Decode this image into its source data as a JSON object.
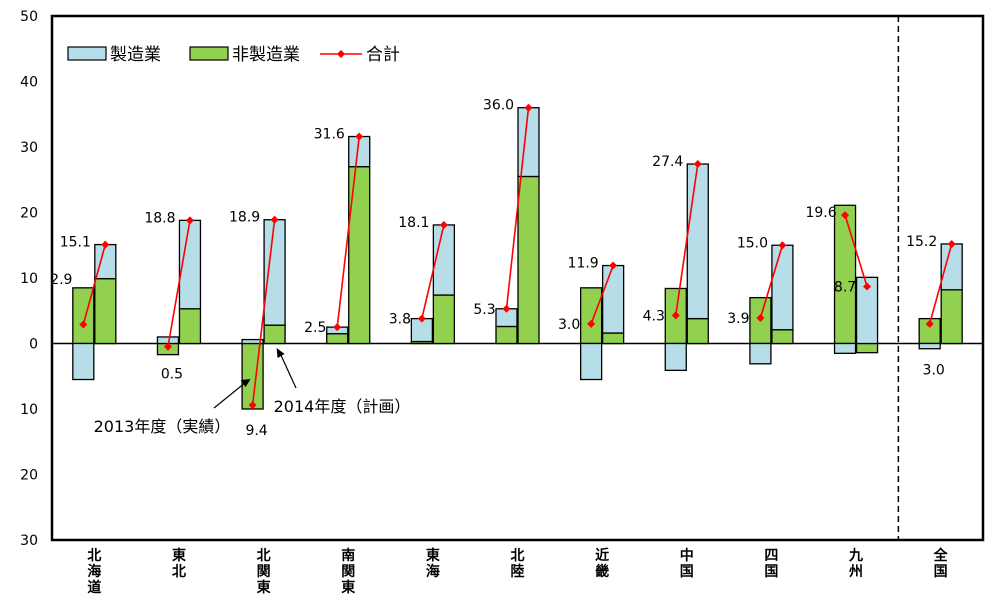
{
  "chart_data": {
    "type": "bar",
    "y_range": [
      -30,
      50
    ],
    "y_ticks": [
      50,
      40,
      30,
      20,
      10,
      0,
      -10,
      -20,
      -30
    ],
    "y_tick_labels": [
      "50",
      "40",
      "30",
      "20",
      "10",
      "0",
      "10",
      "20",
      "30"
    ],
    "grid": false,
    "legend_position": "top-left",
    "legend": [
      {
        "label": "製造業",
        "kind": "bar",
        "color": "#b7dde8"
      },
      {
        "label": "非製造業",
        "kind": "bar",
        "color": "#92d050"
      },
      {
        "label": "合計",
        "kind": "line",
        "color": "#ff0000"
      }
    ],
    "annotations": [
      {
        "text": "2013年度（実績）",
        "points_to": "北関東-2013"
      },
      {
        "text": "2014年度（計画）",
        "points_to": "北関東-2014"
      }
    ],
    "separator": {
      "style": "dashed",
      "between": [
        "九州",
        "全国"
      ]
    },
    "categories": [
      {
        "label": "北海道",
        "y2013": {
          "mfg": -5.5,
          "nonmfg": 8.5,
          "total": 2.9
        },
        "y2014": {
          "mfg": 5.2,
          "nonmfg": 9.9,
          "total": 15.1
        },
        "labels": {
          "y2013": "2.9",
          "y2014": "15.1"
        }
      },
      {
        "label": "東北",
        "y2013": {
          "mfg": 1.0,
          "nonmfg": -1.7,
          "total": -0.5
        },
        "y2014": {
          "mfg": 13.5,
          "nonmfg": 5.3,
          "total": 18.8
        },
        "labels": {
          "y2013": "0.5",
          "y2014": "18.8"
        }
      },
      {
        "label": "北関東",
        "y2013": {
          "mfg": 0.6,
          "nonmfg": -10.0,
          "total": -9.4
        },
        "y2014": {
          "mfg": 16.1,
          "nonmfg": 2.8,
          "total": 18.9
        },
        "labels": {
          "y2013": "9.4",
          "y2014": "18.9"
        }
      },
      {
        "label": "南関東",
        "y2013": {
          "mfg": 1.0,
          "nonmfg": 1.5,
          "total": 2.5
        },
        "y2014": {
          "mfg": 4.6,
          "nonmfg": 27.0,
          "total": 31.6
        },
        "labels": {
          "y2013": "2.5",
          "y2014": "31.6"
        }
      },
      {
        "label": "東海",
        "y2013": {
          "mfg": 3.5,
          "nonmfg": 0.3,
          "total": 3.8
        },
        "y2014": {
          "mfg": 10.7,
          "nonmfg": 7.4,
          "total": 18.1
        },
        "labels": {
          "y2013": "3.8",
          "y2014": "18.1"
        }
      },
      {
        "label": "北陸",
        "y2013": {
          "mfg": 2.7,
          "nonmfg": 2.6,
          "total": 5.3
        },
        "y2014": {
          "mfg": 10.5,
          "nonmfg": 25.5,
          "total": 36.0
        },
        "labels": {
          "y2013": "5.3",
          "y2014": "36.0"
        }
      },
      {
        "label": "近畿",
        "y2013": {
          "mfg": -5.5,
          "nonmfg": 8.5,
          "total": 3.0
        },
        "y2014": {
          "mfg": 10.3,
          "nonmfg": 1.6,
          "total": 11.9
        },
        "labels": {
          "y2013": "3.0",
          "y2014": "11.9"
        }
      },
      {
        "label": "中国",
        "y2013": {
          "mfg": -4.1,
          "nonmfg": 8.4,
          "total": 4.3
        },
        "y2014": {
          "mfg": 23.6,
          "nonmfg": 3.8,
          "total": 27.4
        },
        "labels": {
          "y2013": "4.3",
          "y2014": "27.4"
        }
      },
      {
        "label": "四国",
        "y2013": {
          "mfg": -3.1,
          "nonmfg": 7.0,
          "total": 3.9
        },
        "y2014": {
          "mfg": 12.9,
          "nonmfg": 2.1,
          "total": 15.0
        },
        "labels": {
          "y2013": "3.9",
          "y2014": "15.0"
        }
      },
      {
        "label": "九州",
        "y2013": {
          "mfg": -1.5,
          "nonmfg": 21.1,
          "total": 19.6
        },
        "y2014": {
          "mfg": 10.1,
          "nonmfg": -1.4,
          "total": 8.7
        },
        "labels": {
          "y2013": "19.6",
          "y2014": "8.7"
        }
      },
      {
        "label": "全国",
        "y2013": {
          "mfg": -0.8,
          "nonmfg": 3.8,
          "total": 3.0
        },
        "y2014": {
          "mfg": 7.0,
          "nonmfg": 8.2,
          "total": 15.2
        },
        "labels": {
          "y2013": "3.0",
          "y2014": "15.2"
        }
      }
    ]
  }
}
